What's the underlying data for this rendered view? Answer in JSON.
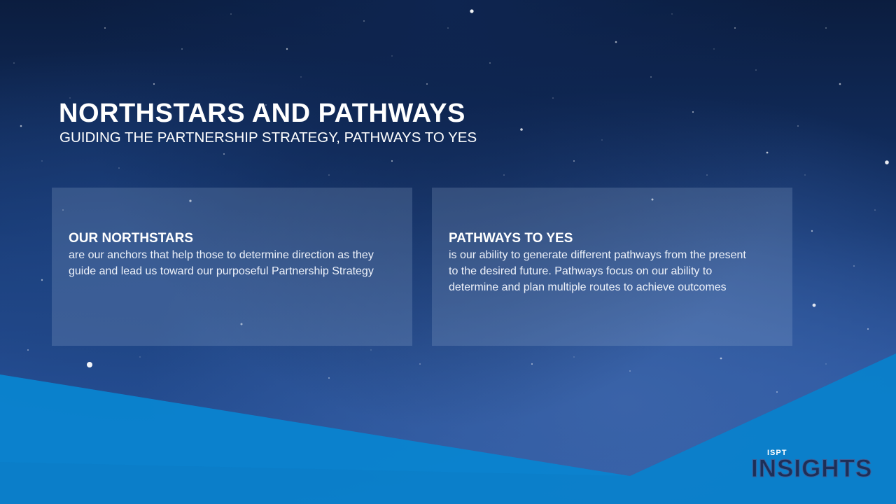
{
  "slide": {
    "title": "NORTHSTARS AND PATHWAYS",
    "subtitle": "GUIDING THE PARTNERSHIP STRATEGY, PATHWAYS TO YES"
  },
  "panels": [
    {
      "heading": "OUR NORTHSTARS",
      "body": "are our anchors that help those to determine direction as they guide and lead us toward our purposeful Partnership Strategy"
    },
    {
      "heading": "PATHWAYS TO YES",
      "body": "is our ability to generate different pathways from the present to the desired future. Pathways focus on our ability to determine and plan multiple routes to achieve outcomes"
    }
  ],
  "logo": {
    "small_text": "ISPT",
    "big_text": "INSIGHTS"
  },
  "colors": {
    "accent_band": "#0a84d0",
    "background_top": "#0b1d3f",
    "background_bottom": "#2f5eab",
    "panel_overlay": "rgba(160,180,215,0.22)"
  }
}
